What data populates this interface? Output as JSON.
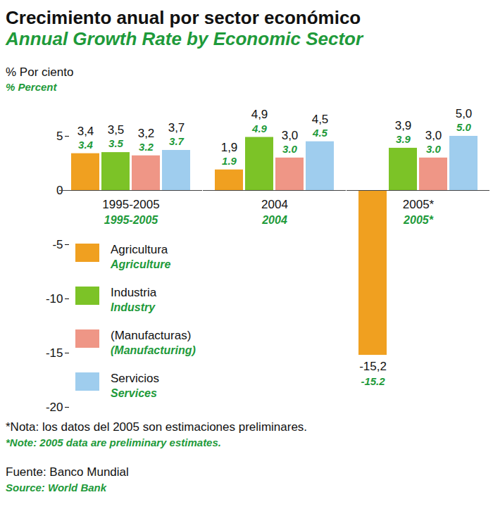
{
  "chart_data": {
    "type": "bar",
    "title": "Crecimiento anual por sector económico",
    "subtitle": "Annual Growth Rate by Economic Sector",
    "y_label": [
      "% Por ciento",
      "% Percent"
    ],
    "categories": [
      [
        "1995-2005",
        "1995-2005"
      ],
      [
        "2004",
        "2004"
      ],
      [
        "2005*",
        "2005*"
      ]
    ],
    "series": [
      {
        "name": [
          "Agricultura",
          "Agriculture"
        ],
        "color": "#f0a020",
        "values": [
          3.4,
          1.9,
          -15.2
        ],
        "value_labels": [
          [
            "3,4",
            "3.4"
          ],
          [
            "1,9",
            "1.9"
          ],
          [
            "-15,2",
            "-15.2"
          ]
        ]
      },
      {
        "name": [
          "Industria",
          "Industry"
        ],
        "color": "#7cc327",
        "values": [
          3.5,
          4.9,
          3.9
        ],
        "value_labels": [
          [
            "3,5",
            "3.5"
          ],
          [
            "4,9",
            "4.9"
          ],
          [
            "3,9",
            "3.9"
          ]
        ]
      },
      {
        "name": [
          "(Manufacturas)",
          "(Manufacturing)"
        ],
        "color": "#ef9686",
        "values": [
          3.2,
          3.0,
          3.0
        ],
        "value_labels": [
          [
            "3,2",
            "3.2"
          ],
          [
            "3,0",
            "3.0"
          ],
          [
            "3,0",
            "3.0"
          ]
        ]
      },
      {
        "name": [
          "Servicios",
          "Services"
        ],
        "color": "#9fcdee",
        "values": [
          3.7,
          4.5,
          5.0
        ],
        "value_labels": [
          [
            "3,7",
            "3.7"
          ],
          [
            "4,5",
            "4.5"
          ],
          [
            "5,0",
            "5.0"
          ]
        ]
      }
    ],
    "ylim": [
      -20,
      5
    ],
    "yticks": [
      -20,
      -15,
      -10,
      -5,
      0,
      5
    ],
    "grid": false,
    "legend": "lower left",
    "data_labels": true,
    "note": [
      "*Nota: los datos del 2005 son estimaciones preliminares.",
      "*Note: 2005 data are preliminary estimates."
    ],
    "source": [
      "Fuente: Banco Mundial",
      "Source: World Bank"
    ]
  }
}
